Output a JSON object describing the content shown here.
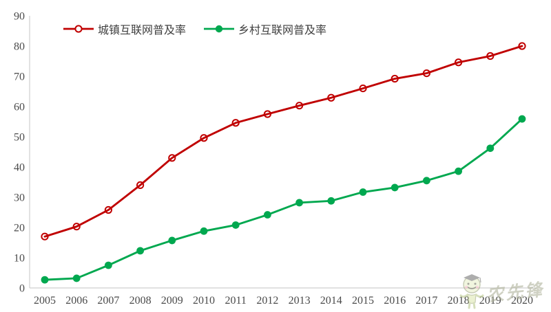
{
  "legend": {
    "items": [
      {
        "id": "urban",
        "label": "城镇互联网普及率",
        "color": "#C00000",
        "marker": "open-circle"
      },
      {
        "id": "rural",
        "label": "乡村互联网普及率",
        "color": "#00A84F",
        "marker": "filled-circle"
      }
    ]
  },
  "chart_data": {
    "type": "line",
    "title": "",
    "xlabel": "",
    "ylabel": "",
    "x": [
      "2005",
      "2006",
      "2007",
      "2008",
      "2009",
      "2010",
      "2011",
      "2012",
      "2013",
      "2014",
      "2015",
      "2016",
      "2017",
      "2018",
      "2019",
      "2020"
    ],
    "series": [
      {
        "name": "城镇互联网普及率",
        "color": "#C00000",
        "marker": "open-circle",
        "values": [
          17.0,
          20.3,
          25.8,
          34.0,
          43.0,
          49.6,
          54.6,
          57.5,
          60.3,
          62.9,
          66.0,
          69.2,
          71.0,
          74.6,
          76.7,
          80.0
        ]
      },
      {
        "name": "乡村互联网普及率",
        "color": "#00A84F",
        "marker": "filled-circle",
        "values": [
          2.7,
          3.2,
          7.5,
          12.3,
          15.7,
          18.8,
          20.8,
          24.2,
          28.2,
          28.8,
          31.7,
          33.2,
          35.5,
          38.6,
          46.2,
          55.9
        ]
      }
    ],
    "ylim": [
      0,
      90
    ],
    "y_ticks": [
      0,
      10,
      20,
      30,
      40,
      50,
      60,
      70,
      80,
      90
    ],
    "grid": false,
    "legend_position": "top-left",
    "axis_color": "#CFCFCF",
    "tick_label_color": "#4a4a4a"
  },
  "watermark": {
    "text": "农先锋",
    "mascot": "graduate-mascot-icon"
  }
}
